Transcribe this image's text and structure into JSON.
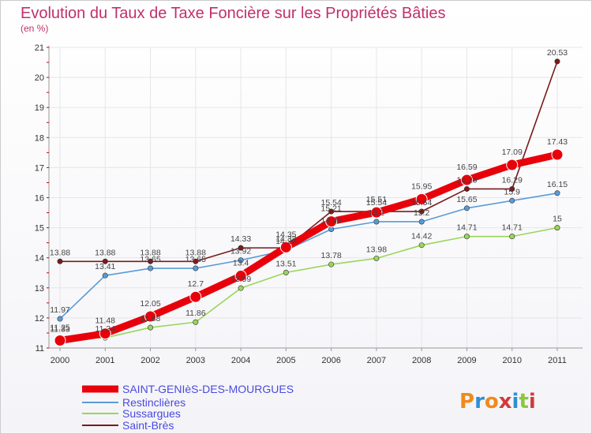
{
  "header": {
    "title": "Evolution du Taux de Taxe Foncière sur les Propriétés Bâties",
    "subtitle": "(en %)"
  },
  "brand": {
    "letters": [
      "P",
      "r",
      "o",
      "x",
      "i",
      "t",
      "i"
    ],
    "colors": [
      "#f08a1c",
      "#2e8fd6",
      "#f08a1c",
      "#d23a3a",
      "#2e8fd6",
      "#8cc63f",
      "#d23a3a"
    ]
  },
  "chart_data": {
    "type": "line",
    "title": "Evolution du Taux de Taxe Foncière sur les Propriétés Bâties",
    "ylabel": "(en %)",
    "xlabel": "",
    "x": [
      "2000",
      "2001",
      "2002",
      "2003",
      "2004",
      "2005",
      "2006",
      "2007",
      "2008",
      "2009",
      "2010",
      "2011"
    ],
    "ylim": [
      11,
      21
    ],
    "yticks": [
      "11",
      "12",
      "13",
      "14",
      "15",
      "16",
      "17",
      "18",
      "19",
      "20",
      "21"
    ],
    "grid": true,
    "legend_position": "bottom-left",
    "series": [
      {
        "name": "Saint-Brès",
        "color": "#7a1a1a",
        "values": [
          13.88,
          13.88,
          13.88,
          13.88,
          14.33,
          14.33,
          15.54,
          15.54,
          15.54,
          16.29,
          16.29,
          20.53
        ],
        "labels": [
          "13.88",
          "13.88",
          "13.88",
          "13.88",
          "14.33",
          "14.33",
          "15.54",
          "15.54",
          "15.54",
          "16.29",
          "16.29",
          "20.53"
        ]
      },
      {
        "name": "Sussargues",
        "color": "#9ad65a",
        "values": [
          11.33,
          11.34,
          11.68,
          11.86,
          12.99,
          13.51,
          13.78,
          13.98,
          14.42,
          14.71,
          14.71,
          15.0
        ],
        "labels": [
          "11.33",
          "11.34",
          "11.68",
          "11.86",
          "12.99",
          "13.51",
          "13.78",
          "13.98",
          "14.42",
          "14.71",
          "14.71",
          "15"
        ]
      },
      {
        "name": "Restinclières",
        "color": "#5a9bd5",
        "values": [
          11.97,
          13.41,
          13.65,
          13.65,
          13.92,
          14.25,
          14.95,
          15.2,
          15.2,
          15.65,
          15.9,
          16.15
        ],
        "labels": [
          "11.97",
          "13.41",
          "13.65",
          "13.65",
          "13.92",
          "14.25",
          "14.95",
          "15.2",
          "15.2",
          "15.65",
          "15.9",
          "16.15"
        ]
      },
      {
        "name": "SAINT-GENIèS-DES-MOURGUES",
        "color": "#e8000b",
        "values": [
          11.25,
          11.48,
          12.05,
          12.7,
          13.4,
          14.35,
          15.21,
          15.51,
          15.95,
          16.59,
          17.09,
          17.43
        ],
        "labels": [
          "11.25",
          "11.48",
          "12.05",
          "12.7",
          "13.4",
          "14.35",
          "15.21",
          "15.51",
          "15.95",
          "16.59",
          "17.09",
          "17.43"
        ]
      }
    ],
    "legend": [
      {
        "name": "SAINT-GENIèS-DES-MOURGUES",
        "color": "#e8000b"
      },
      {
        "name": "Restinclières",
        "color": "#5a9bd5"
      },
      {
        "name": "Sussargues",
        "color": "#9ad65a"
      },
      {
        "name": "Saint-Brès",
        "color": "#7a1a1a"
      }
    ]
  }
}
